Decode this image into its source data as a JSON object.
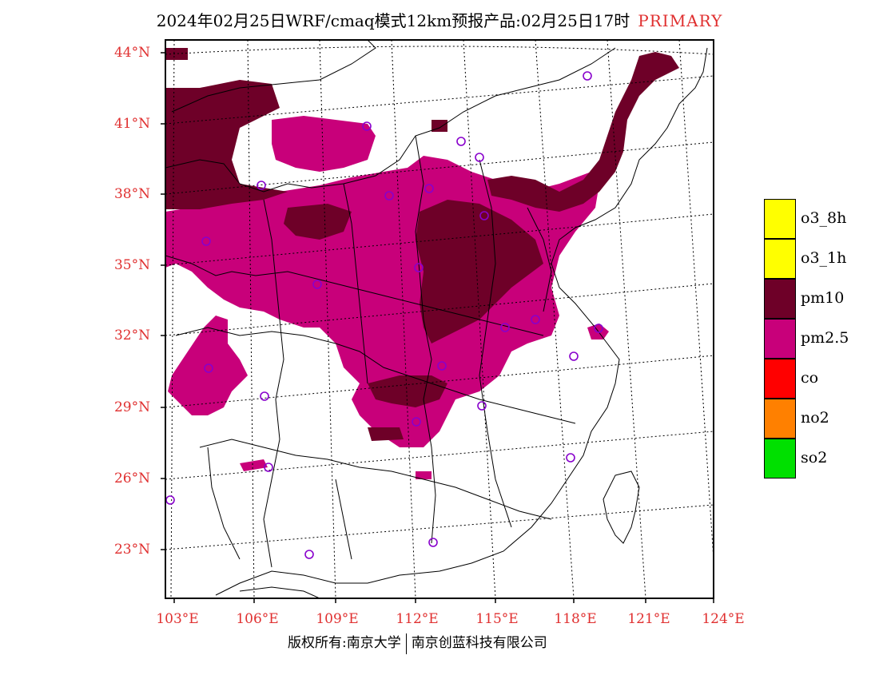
{
  "title": {
    "main": "2024年02月25日WRF/cmaq模式12km预报产品:02月25日17时",
    "tag": "PRIMARY"
  },
  "axes": {
    "lat_labels": [
      "44°N",
      "41°N",
      "38°N",
      "35°N",
      "32°N",
      "29°N",
      "26°N",
      "23°N"
    ],
    "lon_labels": [
      "103°E",
      "106°E",
      "109°E",
      "112°E",
      "115°E",
      "118°E",
      "121°E",
      "124°E"
    ]
  },
  "legend": [
    {
      "label": "o3_8h",
      "color": "#ffff00"
    },
    {
      "label": "o3_1h",
      "color": "#ffff00"
    },
    {
      "label": "pm10",
      "color": "#6e0028"
    },
    {
      "label": "pm2.5",
      "color": "#c8007a"
    },
    {
      "label": "co",
      "color": "#ff0000"
    },
    {
      "label": "no2",
      "color": "#ff8000"
    },
    {
      "label": "so2",
      "color": "#00e000"
    }
  ],
  "footer": {
    "left": "版权所有:南京大学",
    "right": "南京创蓝科技有限公司"
  }
}
